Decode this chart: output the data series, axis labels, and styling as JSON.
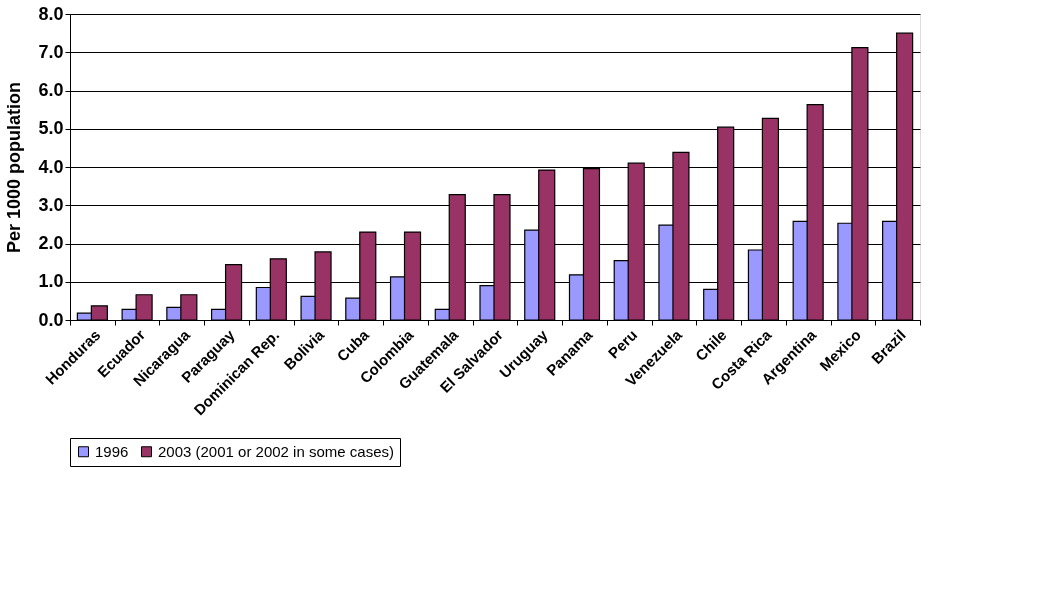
{
  "chart_data": {
    "type": "bar",
    "ylabel": "Per 1000 population",
    "categories": [
      "Honduras",
      "Ecuador",
      "Nicaragua",
      "Paraguay",
      "Dominican Rep.",
      "Bolivia",
      "Cuba",
      "Colombia",
      "Guatemala",
      "El Salvador",
      "Uruguay",
      "Panama",
      "Peru",
      "Venezuela",
      "Chile",
      "Costa Rica",
      "Argentina",
      "Mexico",
      "Brazil"
    ],
    "series": [
      {
        "name": "1996",
        "color": "#9999ff",
        "values": [
          0.18,
          0.28,
          0.33,
          0.28,
          0.85,
          0.62,
          0.57,
          1.13,
          0.28,
          0.9,
          2.35,
          1.18,
          1.55,
          2.48,
          0.8,
          1.83,
          2.58,
          2.53,
          2.58
        ]
      },
      {
        "name": "2003 (2001 or 2002 in some cases)",
        "color": "#993366",
        "values": [
          0.37,
          0.66,
          0.66,
          1.45,
          1.6,
          1.78,
          2.3,
          2.3,
          3.28,
          3.28,
          3.92,
          3.96,
          4.1,
          4.38,
          5.04,
          5.27,
          5.63,
          7.12,
          7.5
        ]
      }
    ],
    "ylim": [
      0,
      8
    ],
    "yticks": [
      {
        "value": 0,
        "label": "0.0"
      },
      {
        "value": 1,
        "label": "1.0"
      },
      {
        "value": 2,
        "label": "2.0"
      },
      {
        "value": 3,
        "label": "3.0"
      },
      {
        "value": 4,
        "label": "4.0"
      },
      {
        "value": 5,
        "label": "5.0"
      },
      {
        "value": 6,
        "label": "6.0"
      },
      {
        "value": 7,
        "label": "7.0"
      },
      {
        "value": 8,
        "label": "8.0"
      }
    ],
    "grid": "y",
    "legend": "bottom"
  }
}
